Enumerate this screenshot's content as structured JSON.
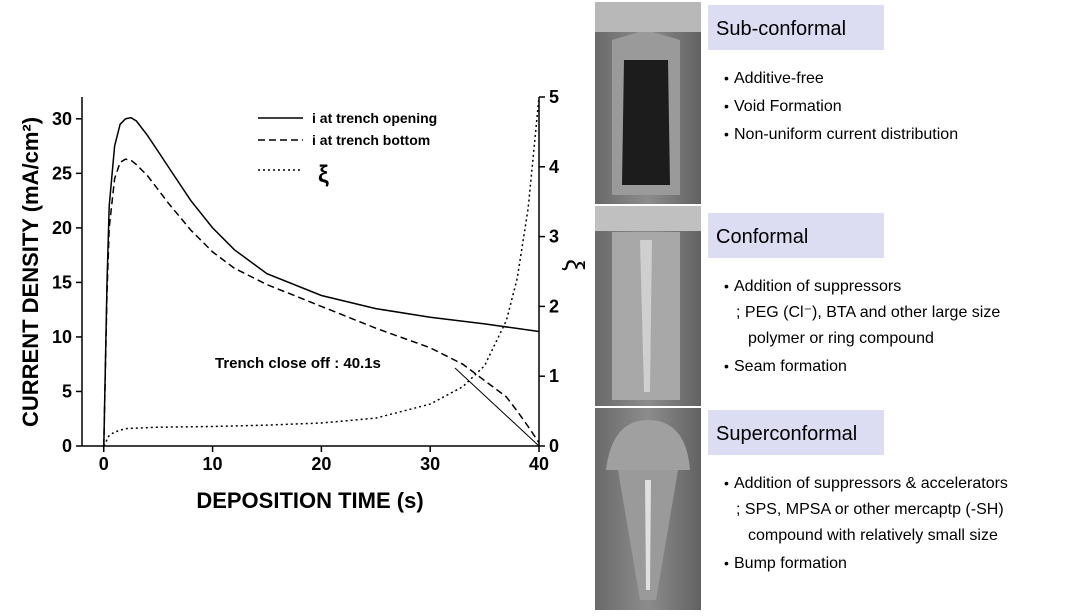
{
  "chart_data": {
    "type": "line",
    "xlabel": "DEPOSITION TIME (s)",
    "ylabel": "CURRENT DENSITY (mA/cm²)",
    "y2label": "ξ",
    "xlim": [
      -2,
      40
    ],
    "xticks": [
      0,
      10,
      20,
      30,
      40
    ],
    "ylim": [
      0,
      32
    ],
    "yticks": [
      0,
      5,
      10,
      15,
      20,
      25,
      30
    ],
    "y2lim": [
      0,
      5
    ],
    "y2ticks": [
      0,
      1,
      2,
      3,
      4,
      5
    ],
    "annotation": "Trench close off : 40.1s",
    "series": [
      {
        "name": "i at trench opening",
        "color": "#000000",
        "style": "solid",
        "x": [
          0,
          0.3,
          0.5,
          1,
          1.5,
          2,
          2.5,
          3,
          4,
          5,
          6,
          8,
          10,
          12,
          15,
          20,
          25,
          30,
          35,
          40
        ],
        "values": [
          0,
          15,
          22,
          27.5,
          29.5,
          30,
          30.1,
          29.8,
          28.5,
          27,
          25.5,
          22.5,
          20,
          18,
          15.8,
          13.8,
          12.6,
          11.8,
          11.2,
          10.5
        ]
      },
      {
        "name": "i at trench bottom",
        "color": "#000000",
        "style": "dashed",
        "x": [
          0,
          0.3,
          0.5,
          1,
          1.5,
          2,
          2.5,
          3,
          4,
          5,
          6,
          8,
          10,
          12,
          15,
          20,
          25,
          30,
          33,
          35,
          37,
          38,
          39,
          40
        ],
        "values": [
          0,
          14,
          20,
          24.5,
          26,
          26.3,
          26.2,
          25.8,
          24.8,
          23.5,
          22.2,
          19.8,
          17.8,
          16.3,
          14.8,
          12.8,
          10.8,
          9,
          7.5,
          6,
          4.5,
          3.2,
          1.8,
          0.3
        ]
      },
      {
        "name": "ξ",
        "color": "#000000",
        "style": "dotted",
        "axis": "y2",
        "x": [
          0,
          0.5,
          1,
          2,
          5,
          10,
          15,
          20,
          25,
          30,
          33,
          35,
          37,
          38,
          39,
          39.5,
          40
        ],
        "values": [
          0,
          0.15,
          0.2,
          0.25,
          0.27,
          0.28,
          0.3,
          0.33,
          0.4,
          0.6,
          0.85,
          1.15,
          1.8,
          2.4,
          3.4,
          4.2,
          5
        ]
      }
    ]
  },
  "panels": [
    {
      "title": "Sub-conformal",
      "items": [
        [
          "Additive-free"
        ],
        [
          "Void Formation"
        ],
        [
          "Non-uniform current distribution"
        ]
      ]
    },
    {
      "title": "Conformal",
      "items": [
        [
          "Addition of suppressors",
          "; PEG (Cl⁻), BTA and other large size",
          "polymer or ring compound"
        ],
        [
          "Seam formation"
        ]
      ]
    },
    {
      "title": "Superconformal",
      "items": [
        [
          "Addition of suppressors & accelerators",
          "; SPS, MPSA or other mercaptp (-SH)",
          "compound with relatively small size"
        ],
        [
          "Bump formation"
        ]
      ]
    }
  ]
}
